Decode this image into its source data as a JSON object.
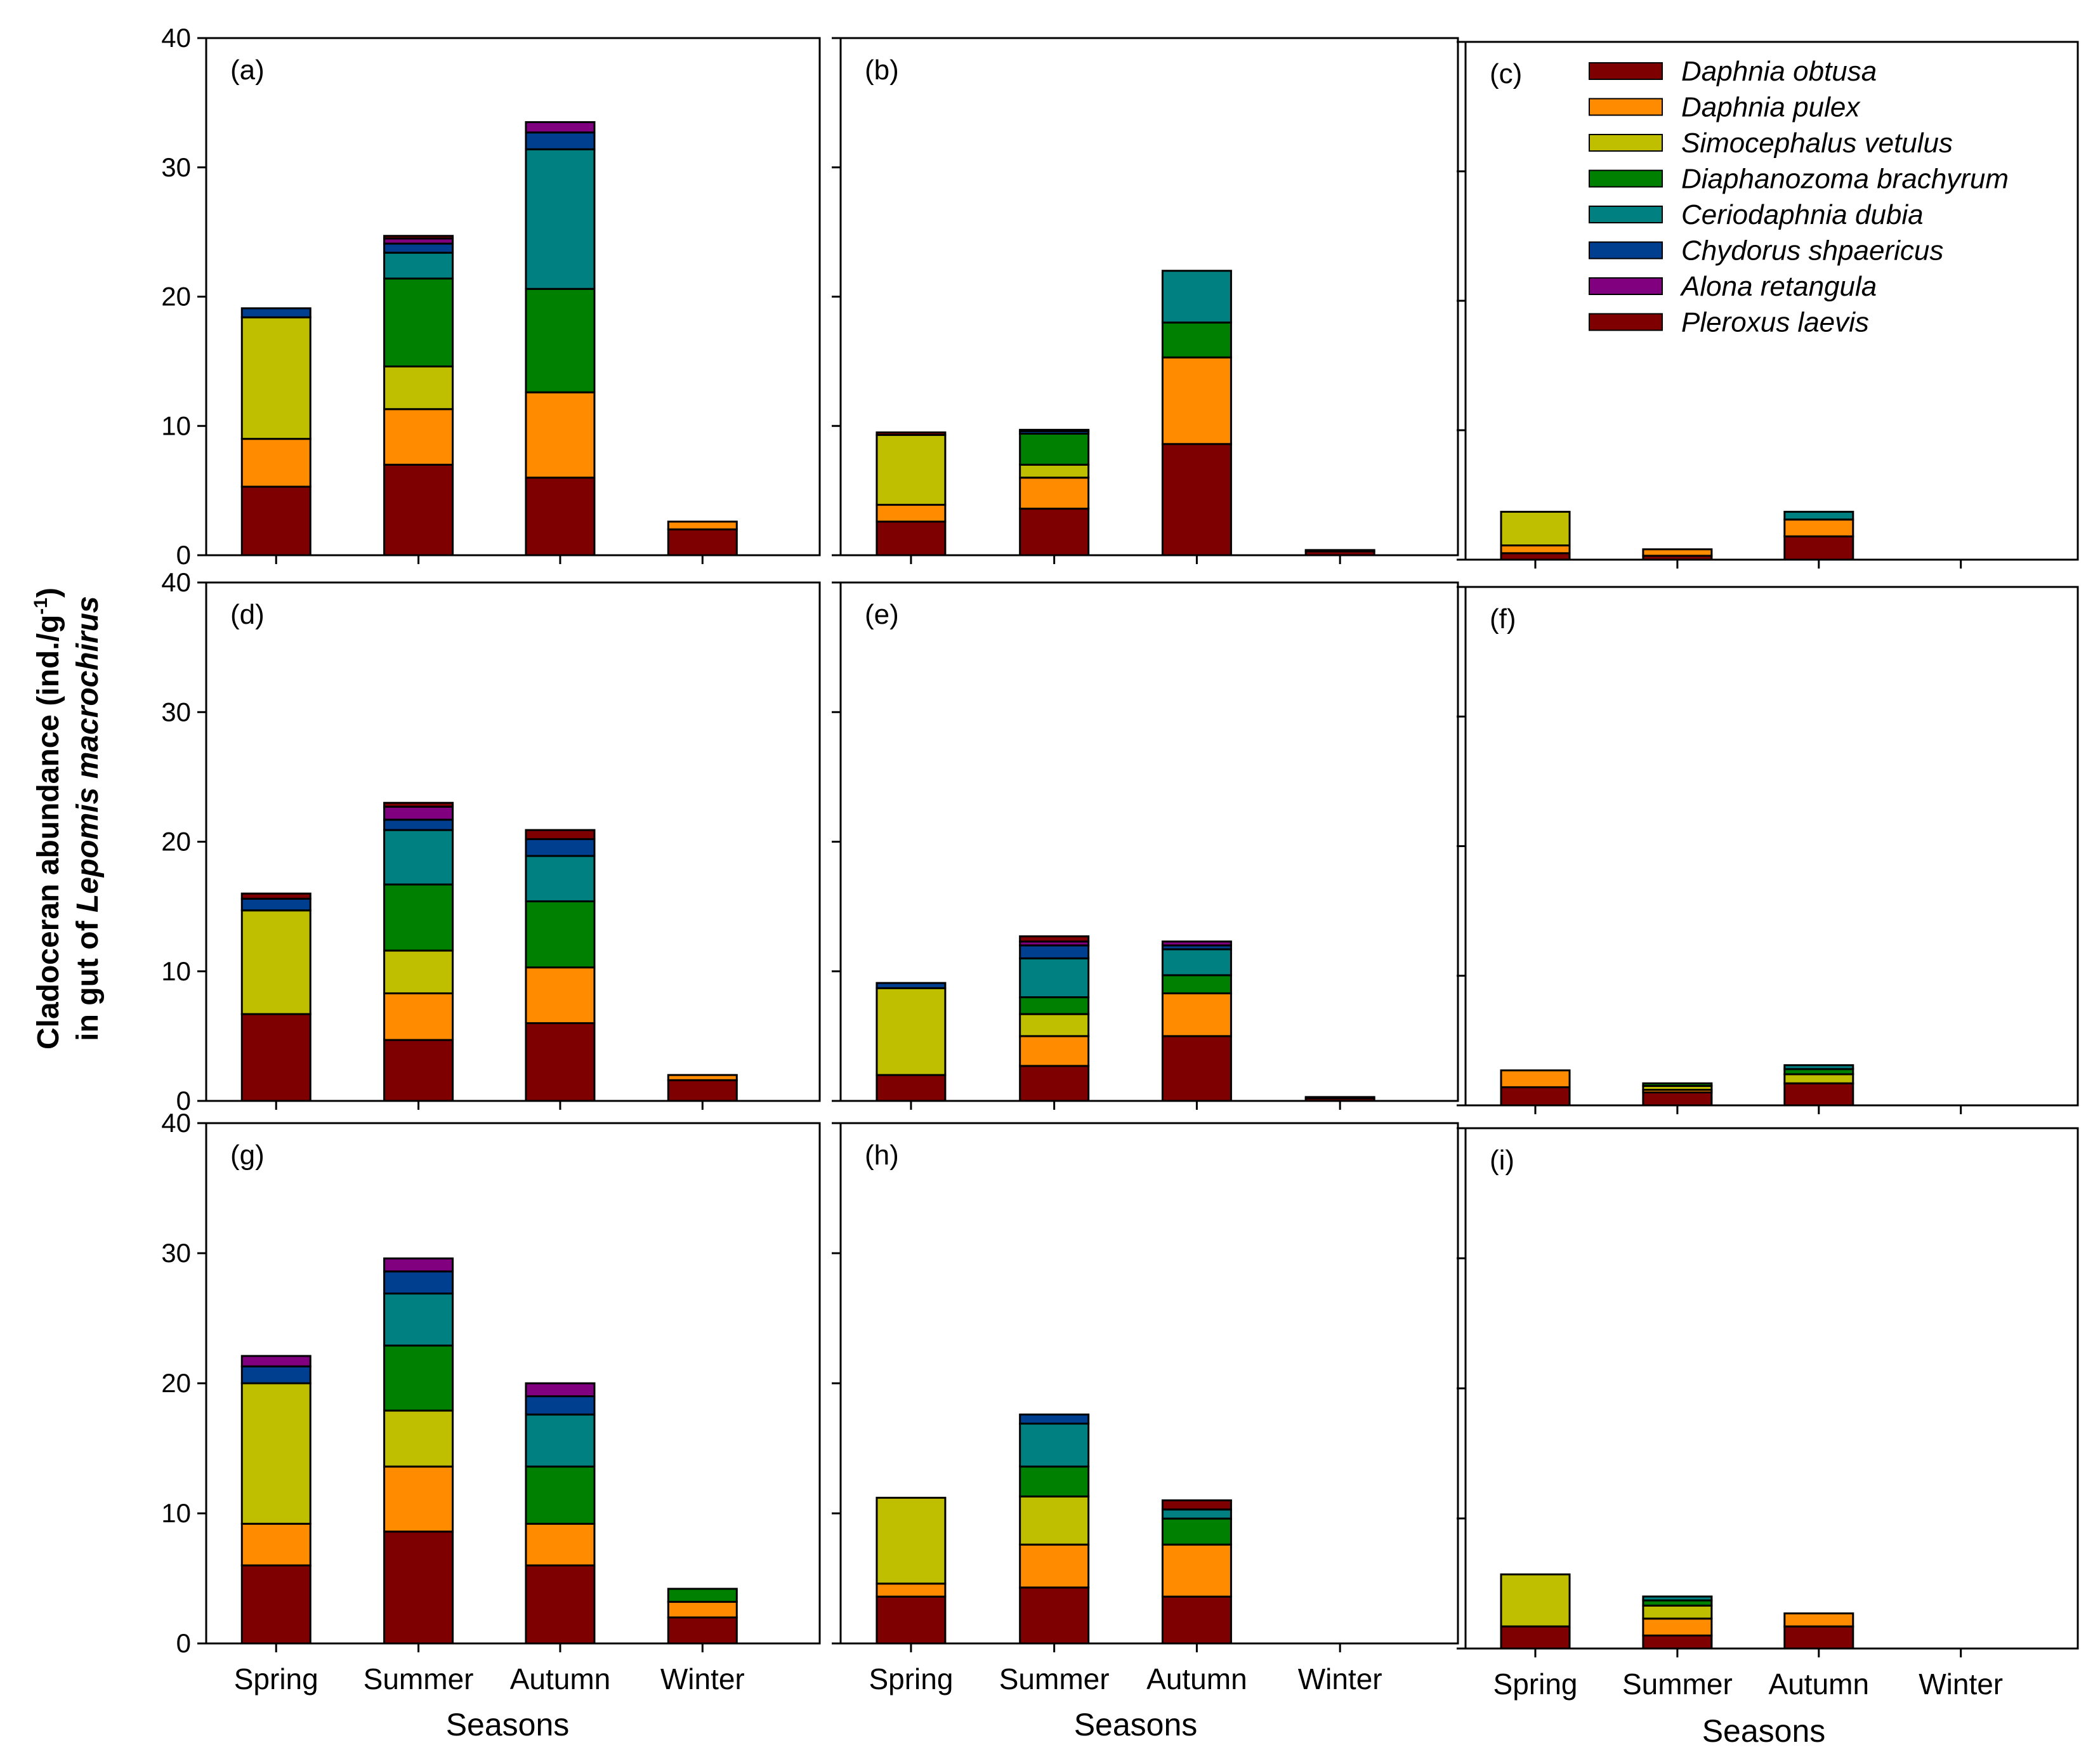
{
  "chart_data": {
    "type": "bar",
    "stacked": true,
    "categories": [
      "Spring",
      "Summer",
      "Autumn",
      "Winter"
    ],
    "xlabel": "Seasons",
    "ylabel_line1_prefix": "Cladoceran abundance (ind./g",
    "ylabel_line1_sup": "-1",
    "ylabel_line1_suffix": ")",
    "ylabel_line2_prefix": "in gut of ",
    "ylabel_line2_italic": "Lepomis macrochirus",
    "ylim": [
      0,
      40
    ],
    "yticks": [
      0,
      10,
      20,
      30,
      40
    ],
    "species": [
      {
        "name": "Daphnia obtusa",
        "color": "#7f0000"
      },
      {
        "name": "Daphnia pulex",
        "color": "#ff8c00"
      },
      {
        "name": "Simocephalus vetulus",
        "color": "#bfbf00"
      },
      {
        "name": "Diaphanozoma brachyrum",
        "color": "#008000"
      },
      {
        "name": "Ceriodaphnia dubia",
        "color": "#008080"
      },
      {
        "name": "Chydorus shpaericus",
        "color": "#003f8f"
      },
      {
        "name": "Alona retangula",
        "color": "#800080"
      },
      {
        "name": "Pleroxus laevis",
        "color": "#7f0000"
      }
    ],
    "panels": [
      {
        "label": "(a)",
        "values": [
          [
            5.3,
            3.7,
            9.4,
            0,
            0,
            0.7,
            0,
            0
          ],
          [
            7,
            4.3,
            3.3,
            6.8,
            2,
            0.7,
            0.4,
            0.2
          ],
          [
            6,
            6.6,
            0,
            8,
            10.8,
            1.3,
            0.8,
            0
          ],
          [
            2,
            0.6,
            0,
            0,
            0,
            0,
            0,
            0
          ]
        ]
      },
      {
        "label": "(b)",
        "values": [
          [
            2.6,
            1.3,
            5.4,
            0,
            0,
            0,
            0,
            0.2
          ],
          [
            3.6,
            2.4,
            1,
            2.4,
            0,
            0.2,
            0,
            0.1
          ],
          [
            8.6,
            6.7,
            0,
            2.7,
            4,
            0,
            0,
            0
          ],
          [
            0.3,
            0.1,
            0,
            0,
            0,
            0,
            0,
            0
          ]
        ]
      },
      {
        "label": "(c)",
        "values": [
          [
            0.5,
            0.6,
            2.6,
            0,
            0,
            0,
            0,
            0
          ],
          [
            0.3,
            0.5,
            0,
            0,
            0,
            0,
            0,
            0
          ],
          [
            1.8,
            1.3,
            0,
            0,
            0.6,
            0,
            0,
            0
          ],
          [
            0,
            0,
            0,
            0,
            0,
            0,
            0,
            0
          ]
        ]
      },
      {
        "label": "(d)",
        "values": [
          [
            6.7,
            0,
            8,
            0,
            0,
            0.9,
            0,
            0.4
          ],
          [
            4.7,
            3.6,
            3.3,
            5.1,
            4.2,
            0.8,
            1,
            0.3
          ],
          [
            6,
            4.3,
            0,
            5.1,
            3.5,
            1.3,
            0,
            0.7
          ],
          [
            1.6,
            0.4,
            0,
            0,
            0,
            0,
            0,
            0
          ]
        ]
      },
      {
        "label": "(e)",
        "values": [
          [
            2,
            0,
            6.7,
            0,
            0,
            0.4,
            0,
            0
          ],
          [
            2.7,
            2.3,
            1.7,
            1.3,
            3,
            1,
            0.3,
            0.4
          ],
          [
            5,
            3.3,
            0,
            1.4,
            2,
            0.3,
            0.3,
            0
          ],
          [
            0.2,
            0.1,
            0,
            0,
            0,
            0,
            0,
            0
          ]
        ]
      },
      {
        "label": "(f)",
        "values": [
          [
            1.4,
            1.3,
            0,
            0,
            0,
            0,
            0,
            0
          ],
          [
            1,
            0.2,
            0.3,
            0.2,
            0,
            0,
            0,
            0
          ],
          [
            1.7,
            0,
            0.7,
            0.4,
            0.3,
            0,
            0,
            0
          ],
          [
            0,
            0,
            0,
            0,
            0,
            0,
            0,
            0
          ]
        ]
      },
      {
        "label": "(g)",
        "values": [
          [
            6,
            3.2,
            10.8,
            0,
            0,
            1.3,
            0.8,
            0
          ],
          [
            8.6,
            5,
            4.3,
            5,
            4,
            1.7,
            1,
            0
          ],
          [
            6,
            3.2,
            0,
            4.4,
            4,
            1.4,
            1,
            0
          ],
          [
            2,
            1.2,
            0,
            1,
            0,
            0,
            0,
            0
          ]
        ]
      },
      {
        "label": "(h)",
        "values": [
          [
            3.6,
            1,
            6.6,
            0,
            0,
            0,
            0,
            0
          ],
          [
            4.3,
            3.3,
            3.7,
            2.3,
            3.3,
            0.7,
            0,
            0
          ],
          [
            3.6,
            4,
            0,
            2,
            0.7,
            0,
            0,
            0.7
          ],
          [
            0,
            0,
            0,
            0,
            0,
            0,
            0,
            0
          ]
        ]
      },
      {
        "label": "(i)",
        "values": [
          [
            1.7,
            0,
            4,
            0,
            0,
            0,
            0,
            0
          ],
          [
            1,
            1.3,
            1,
            0.4,
            0.3,
            0,
            0,
            0
          ],
          [
            1.7,
            1,
            0,
            0,
            0,
            0,
            0,
            0
          ],
          [
            0,
            0,
            0,
            0,
            0,
            0,
            0,
            0
          ]
        ]
      }
    ]
  }
}
